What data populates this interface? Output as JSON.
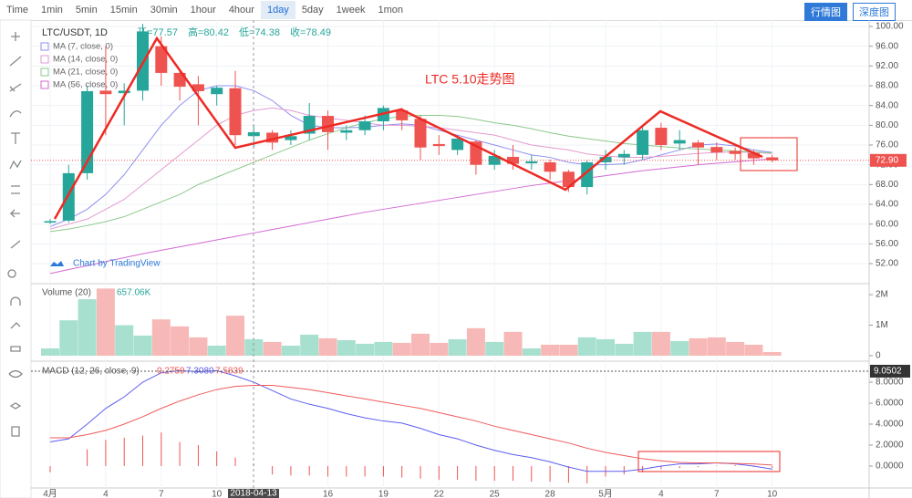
{
  "toolbar": {
    "items": [
      "Time",
      "1min",
      "5min",
      "15min",
      "30min",
      "1hour",
      "4hour",
      "1day",
      "5day",
      "1week",
      "1mon"
    ],
    "selected": 7
  },
  "tabs": [
    "行情图",
    "深度图"
  ],
  "watermark": "Chart by TradingView",
  "chart_data": [
    {
      "type": "candlestick",
      "title": "LTC/USDT, 1D",
      "ohlc_legend": [
        "开=77.57",
        "高=80.42",
        "低=74.38",
        "收=78.49"
      ],
      "annotation": "LTC 5.10走势图",
      "crosshair_label": "2018-04-13",
      "categories": [
        "4月",
        null,
        null,
        "4",
        null,
        null,
        "7",
        null,
        null,
        "10",
        null,
        null,
        null,
        null,
        null,
        "16",
        null,
        null,
        "19",
        null,
        null,
        "22",
        null,
        null,
        "25",
        null,
        null,
        "28",
        null,
        null,
        "5月",
        null,
        null,
        "4",
        null,
        null,
        "7",
        null,
        null,
        "10"
      ],
      "open": [
        60.3,
        60.7,
        70.3,
        87,
        86.5,
        87,
        96,
        90.6,
        88.3,
        86.3,
        87.5,
        77.8,
        78.5,
        77,
        78.3,
        81.9,
        78.5,
        79,
        80.8,
        83,
        81.3,
        76.2,
        75,
        76.7,
        72,
        73.6,
        72.3,
        72.5,
        70.6,
        67.5,
        72.5,
        73.5,
        74,
        79.5,
        76.3,
        76.5,
        75.6,
        74.8,
        74.4,
        73.5
      ],
      "high": [
        61,
        72,
        88,
        96,
        88.5,
        100.5,
        98,
        91,
        90,
        88,
        91,
        80,
        79,
        79,
        84.5,
        83,
        80,
        82,
        84,
        83.5,
        82,
        78,
        78,
        77,
        75,
        76,
        74,
        73,
        71,
        73,
        75,
        75,
        80,
        80.5,
        79,
        77,
        76.5,
        75.5,
        75,
        74
      ],
      "low": [
        60,
        60.3,
        69,
        78,
        80,
        85,
        88,
        85,
        80,
        84,
        76,
        75.5,
        75,
        76,
        77,
        75,
        77,
        78,
        79,
        79,
        73,
        74,
        74,
        70,
        71,
        71,
        71,
        69,
        66.5,
        66,
        71,
        72,
        73,
        75,
        75,
        72,
        73,
        73,
        72,
        72.5
      ],
      "close": [
        60.6,
        70.3,
        86.9,
        86.3,
        87,
        99,
        90.6,
        87.8,
        86.9,
        87.6,
        78,
        78.6,
        76.5,
        77.8,
        81.9,
        78.6,
        79,
        80.8,
        83.5,
        81,
        75.5,
        75.8,
        77.3,
        72,
        73.8,
        72.2,
        72.7,
        70.6,
        67.5,
        72.5,
        73.6,
        74.2,
        79,
        76,
        77,
        75.5,
        74.5,
        74.2,
        73.3,
        72.9
      ],
      "up_color": "#26a69a",
      "down_color": "#ef5350",
      "series": [
        {
          "name": "MA (7, close, 0)",
          "color": "#8f8ff0",
          "values": [
            59.5,
            61,
            63,
            66,
            70,
            75,
            80,
            84,
            87,
            88,
            88,
            87,
            85,
            82,
            80,
            79.5,
            79.5,
            79.6,
            80,
            80.3,
            80,
            79,
            78,
            77,
            76,
            75,
            74,
            73.5,
            72.5,
            72,
            72,
            72.2,
            73,
            74,
            75,
            76,
            76.2,
            75.8,
            75,
            74.5
          ]
        },
        {
          "name": "MA (14, close, 0)",
          "color": "#e39ad0",
          "values": [
            59,
            60,
            61,
            63,
            65,
            68,
            71,
            74,
            77,
            80,
            82,
            83,
            83.5,
            83,
            82,
            81.5,
            81,
            80.5,
            80,
            80,
            79.8,
            79.5,
            79,
            78.5,
            78,
            77,
            76,
            75.5,
            75,
            74.2,
            73.8,
            73.5,
            73.5,
            73.7,
            74,
            74.3,
            74.5,
            74.6,
            74.5,
            74.3
          ]
        },
        {
          "name": "MA (21, close, 0)",
          "color": "#8cc98c",
          "values": [
            58.5,
            59,
            59.7,
            60.5,
            61.5,
            63,
            64.5,
            66,
            68,
            69.5,
            71,
            72.5,
            74,
            75.5,
            77,
            78.3,
            79.5,
            80.5,
            81.3,
            81.8,
            82,
            82,
            81.8,
            81.2,
            80.5,
            80,
            79.3,
            78.5,
            77.8,
            77.3,
            76.8,
            76.3,
            76,
            75.7,
            75.4,
            75.2,
            75,
            74.8,
            74.6,
            74.4
          ]
        },
        {
          "name": "MA (56, close, 0)",
          "color": "#d36ad3",
          "values": [
            50,
            50.8,
            51.6,
            52.4,
            53.2,
            54,
            54.7,
            55.4,
            56.1,
            56.8,
            57.5,
            58.2,
            58.9,
            59.6,
            60.3,
            61,
            61.7,
            62.4,
            63,
            63.6,
            64.2,
            64.8,
            65.4,
            66,
            66.6,
            67.2,
            67.8,
            68.3,
            68.8,
            69.3,
            69.8,
            70.3,
            70.8,
            71.2,
            71.6,
            72,
            72.3,
            72.6,
            72.9,
            73.2
          ]
        }
      ],
      "ylim": [
        48.13,
        101.29
      ],
      "yticks": [
        {
          "value": 100,
          "label": "100.00"
        },
        {
          "value": 96,
          "label": "96.00"
        },
        {
          "value": 92,
          "label": "92.00"
        },
        {
          "value": 88,
          "label": "88.00"
        },
        {
          "value": 84,
          "label": "84.00"
        },
        {
          "value": 80,
          "label": "80.00"
        },
        {
          "value": 76,
          "label": "76.00"
        },
        {
          "value": 72,
          "label": "72.00"
        },
        {
          "value": 68,
          "label": "68.00"
        },
        {
          "value": 64,
          "label": "64.00"
        },
        {
          "value": 60,
          "label": "60.00"
        },
        {
          "value": 56,
          "label": "56.00"
        },
        {
          "value": 52,
          "label": "52.00"
        }
      ],
      "last_price": {
        "value": 72.9,
        "label": "72.90"
      }
    },
    {
      "type": "bar",
      "title": "Volume (20)",
      "value_legend": "657.06K",
      "values": [
        240000,
        1160000,
        1850000,
        2200000,
        1000000,
        660000,
        1190000,
        960000,
        600000,
        330000,
        1310000,
        540000,
        450000,
        330000,
        690000,
        570000,
        510000,
        390000,
        450000,
        420000,
        720000,
        420000,
        540000,
        900000,
        450000,
        780000,
        240000,
        360000,
        360000,
        600000,
        540000,
        390000,
        780000,
        780000,
        480000,
        570000,
        600000,
        450000,
        360000,
        120000
      ],
      "ylim": [
        -150000,
        2330000
      ],
      "yticks": [
        {
          "value": 2000000,
          "label": "2M"
        },
        {
          "value": 1000000,
          "label": "1M"
        },
        0
      ]
    },
    {
      "type": "line",
      "title": "MACD (12, 26, close, 9)",
      "legend_values": [
        "0.2759",
        "7.3080",
        "7.5839"
      ],
      "histogram": [
        -0.6,
        0,
        1.6,
        2.5,
        2.7,
        2.9,
        3.2,
        2.3,
        2,
        1.4,
        0.8,
        0.2,
        -0.8,
        -0.9,
        -0.9,
        -1,
        -1,
        -1,
        -1,
        -1.1,
        -1.2,
        -1.3,
        -1.3,
        -1.4,
        -1.4,
        -1.4,
        -1.5,
        -1.5,
        -1.6,
        -1.65,
        -1,
        -0.8,
        -0.6,
        -0.3,
        -0.2,
        -0.1,
        0.05,
        0.1,
        -0.1,
        -0.2
      ],
      "histogram_color": "#ef5350",
      "series": [
        {
          "color": "#5d5df0",
          "values": [
            2.3,
            2.6,
            4,
            5.5,
            6.6,
            8,
            8.9,
            9.1,
            9,
            9.1,
            8.6,
            8,
            7.2,
            6.4,
            5.9,
            5.5,
            5,
            4.6,
            4.3,
            4.1,
            3.6,
            3,
            2.6,
            2,
            1.5,
            1.1,
            0.8,
            0.4,
            -0.1,
            -0.5,
            -0.5,
            -0.5,
            -0.3,
            0,
            0.2,
            0.2,
            0.3,
            0.2,
            0,
            -0.3
          ]
        },
        {
          "color": "#f05a5a",
          "values": [
            2.7,
            2.7,
            3,
            3.4,
            4,
            4.7,
            5.5,
            6.2,
            6.8,
            7.3,
            7.6,
            7.7,
            7.7,
            7.5,
            7.3,
            7,
            6.7,
            6.4,
            6.1,
            5.8,
            5.5,
            5.1,
            4.7,
            4.3,
            3.8,
            3.4,
            3,
            2.6,
            2.2,
            1.7,
            1.3,
            1,
            0.7,
            0.5,
            0.35,
            0.3,
            0.3,
            0.25,
            0.2,
            0.1
          ]
        }
      ],
      "ylim": [
        -2.09,
        9.83
      ],
      "yticks": [
        {
          "value": 8,
          "label": "8.0000"
        },
        {
          "value": 6,
          "label": "6.0000"
        },
        {
          "value": 4,
          "label": "4.0000"
        },
        {
          "value": 2,
          "label": "2.0000"
        },
        {
          "value": 0,
          "label": "0.0000"
        }
      ],
      "last_value": {
        "value": 9.0502,
        "label": "9.0502"
      }
    }
  ]
}
